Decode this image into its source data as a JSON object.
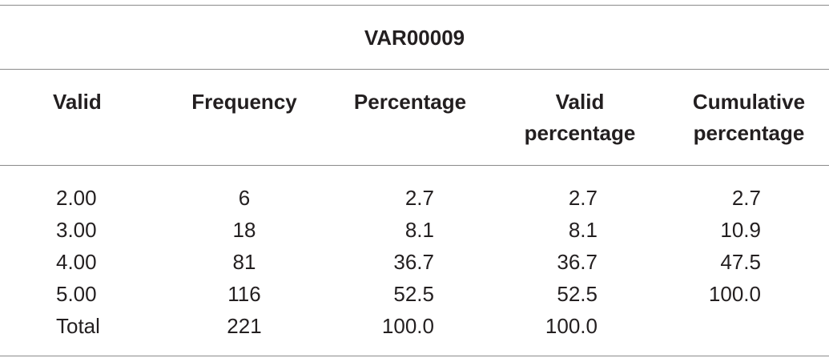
{
  "table": {
    "title": "VAR00009",
    "header": [
      "Valid",
      "Frequency",
      "Percentage",
      "Valid percentage",
      "Cumulative percentage"
    ],
    "rows": [
      [
        "2.00",
        "6",
        "2.7",
        "2.7",
        "2.7"
      ],
      [
        "3.00",
        "18",
        "8.1",
        "8.1",
        "10.9"
      ],
      [
        "4.00",
        "81",
        "36.7",
        "36.7",
        "47.5"
      ],
      [
        "5.00",
        "116",
        "52.5",
        "52.5",
        "100.0"
      ],
      [
        "Total",
        "221",
        "100.0",
        "100.0"
      ]
    ]
  }
}
